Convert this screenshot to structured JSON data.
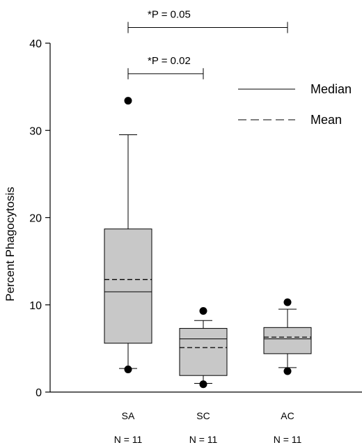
{
  "chart_data": {
    "type": "box",
    "title": "",
    "xlabel": "",
    "ylabel": "Percent Phagocytosis",
    "ylim": [
      0,
      40
    ],
    "yticks": [
      0,
      10,
      20,
      30,
      40
    ],
    "categories": [
      "SA",
      "SC",
      "AC"
    ],
    "n_labels": [
      "N = 11",
      "N = 11",
      "N = 11"
    ],
    "box_fill": "#c8c8c8",
    "boxes": [
      {
        "name": "SA",
        "q1": 5.6,
        "median": 11.5,
        "mean": 12.9,
        "q3": 18.7,
        "whisker_low": 2.7,
        "whisker_high": 29.5,
        "outliers": [
          33.4,
          2.6
        ]
      },
      {
        "name": "SC",
        "q1": 1.9,
        "median": 6.1,
        "mean": 5.1,
        "q3": 7.3,
        "whisker_low": 1.0,
        "whisker_high": 8.2,
        "outliers": [
          9.3,
          0.9
        ]
      },
      {
        "name": "AC",
        "q1": 4.4,
        "median": 6.1,
        "mean": 6.3,
        "q3": 7.4,
        "whisker_low": 2.8,
        "whisker_high": 9.5,
        "outliers": [
          10.3,
          2.4
        ]
      }
    ],
    "significance": [
      {
        "from": "SA",
        "to": "SC",
        "label": "*P = 0.02",
        "y": 36.5
      },
      {
        "from": "SA",
        "to": "AC",
        "label": "*P = 0.05",
        "y": 41.8
      }
    ],
    "legend": {
      "placement": "top-right",
      "entries": [
        {
          "label": "Median",
          "style": "solid"
        },
        {
          "label": "Mean",
          "style": "dashed"
        }
      ]
    }
  }
}
